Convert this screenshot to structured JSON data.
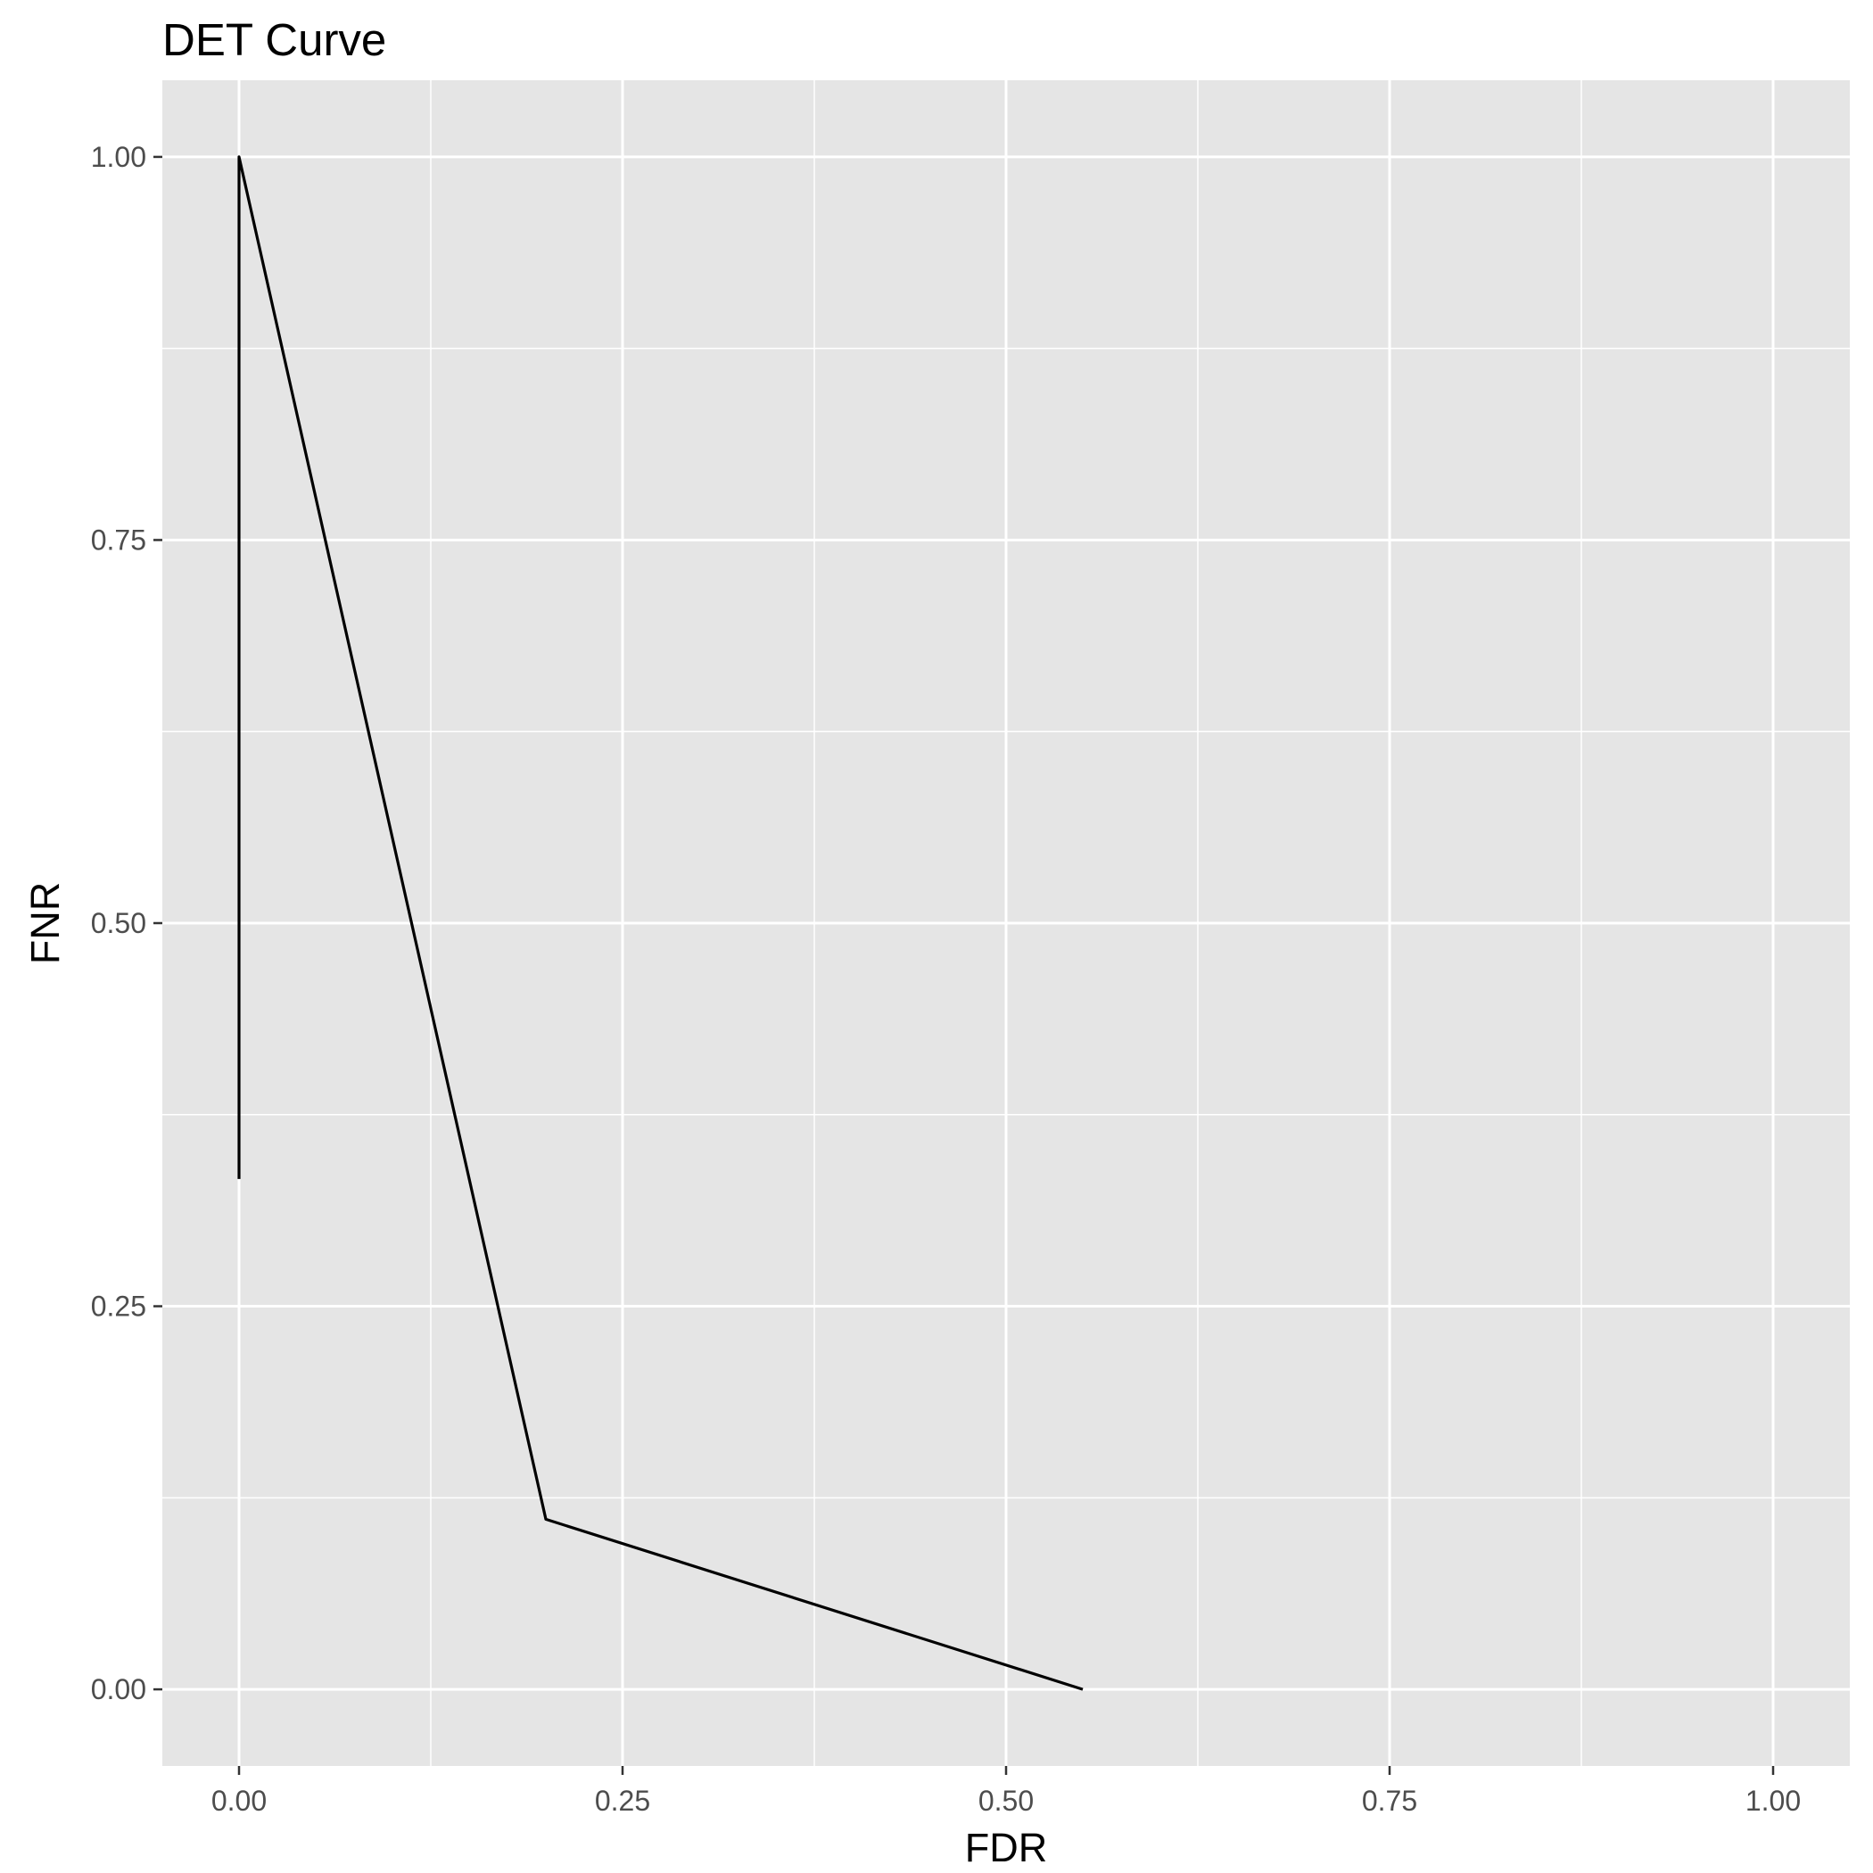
{
  "chart_data": {
    "type": "line",
    "title": "DET Curve",
    "xlabel": "FDR",
    "ylabel": "FNR",
    "xlim": [
      -0.05,
      1.05
    ],
    "ylim": [
      -0.05,
      1.05
    ],
    "x_major_ticks": [
      0.0,
      0.25,
      0.5,
      0.75,
      1.0
    ],
    "x_tick_labels": [
      "0.00",
      "0.25",
      "0.50",
      "0.75",
      "1.00"
    ],
    "y_major_ticks": [
      0.0,
      0.25,
      0.5,
      0.75,
      1.0
    ],
    "y_tick_labels": [
      "0.00",
      "0.25",
      "0.50",
      "0.75",
      "1.00"
    ],
    "x_minor_ticks": [
      0.125,
      0.375,
      0.625,
      0.875
    ],
    "y_minor_ticks": [
      0.125,
      0.375,
      0.625,
      0.875
    ],
    "grid": true,
    "legend": "none",
    "series": [
      {
        "x": [
          0.0,
          0.0,
          0.2,
          0.55
        ],
        "y": [
          0.333,
          1.0,
          0.111,
          0.0
        ]
      }
    ],
    "colors": {
      "panel_background": "#e5e5e5",
      "grid": "#ffffff",
      "line": "#000000",
      "tick_label": "#4d4d4d",
      "tick_mark": "#333333"
    }
  }
}
